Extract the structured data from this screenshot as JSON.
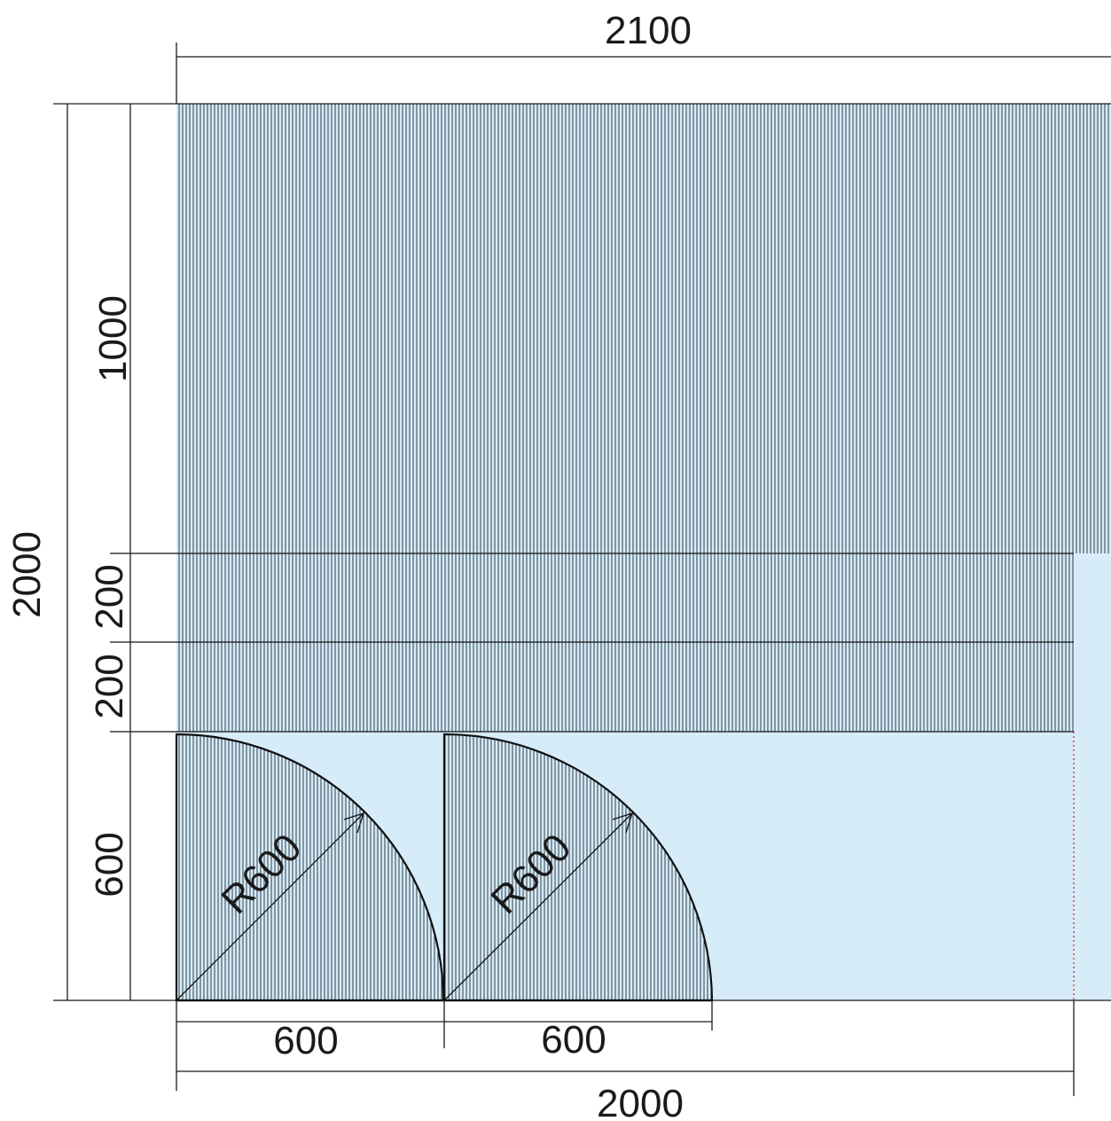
{
  "colors": {
    "panel_fill": "#d6ecf8",
    "hatch": "#1e2a33",
    "line": "#1a1a1a",
    "cut_line": "#e0303a"
  },
  "dimensions": {
    "top_width": "2100",
    "left_total_height": "2000",
    "left_upper_height": "1000",
    "left_strip_1_height": "200",
    "left_strip_2_height": "200",
    "left_lower_height": "600",
    "bottom_width_1": "600",
    "bottom_width_2": "600",
    "bottom_total_width": "2000"
  },
  "labels": {
    "radius_1": "R600",
    "radius_2": "R600"
  }
}
